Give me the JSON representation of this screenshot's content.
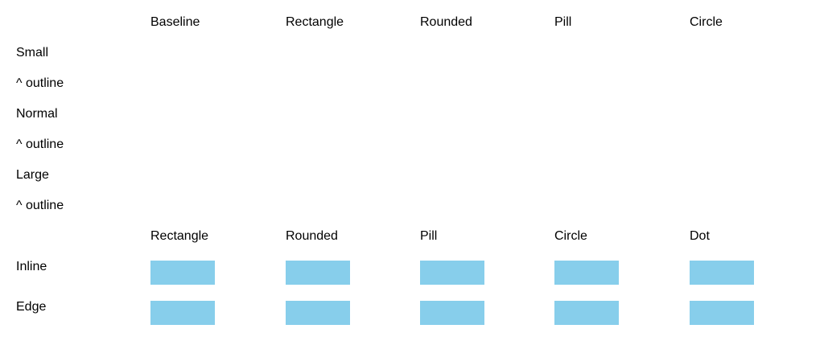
{
  "top_table": {
    "columns": [
      "Baseline",
      "Rectangle",
      "Rounded",
      "Pill",
      "Circle"
    ],
    "rows": [
      "Small",
      "^ outline",
      "Normal",
      "^ outline",
      "Large",
      "^ outline"
    ]
  },
  "bottom_table": {
    "columns": [
      "Rectangle",
      "Rounded",
      "Pill",
      "Circle",
      "Dot"
    ],
    "rows": [
      "Inline",
      "Edge"
    ]
  },
  "colors": {
    "swatch": "#87ceeb",
    "background": "#ffffff",
    "text": "#000000"
  }
}
